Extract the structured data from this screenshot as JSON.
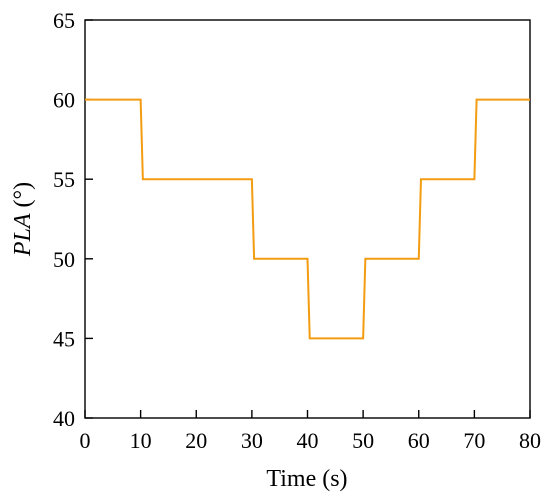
{
  "chart_data": {
    "type": "line",
    "title": "",
    "xlabel": "Time (s)",
    "ylabel_italic": "PLA",
    "ylabel_unit": " (°)",
    "xlim": [
      0,
      80
    ],
    "ylim": [
      40,
      65
    ],
    "xticks": [
      0,
      10,
      20,
      30,
      40,
      50,
      60,
      70,
      80
    ],
    "yticks": [
      40,
      45,
      50,
      55,
      60,
      65
    ],
    "grid": false,
    "legend": "none",
    "color": "#F39C12",
    "series": [
      {
        "x": [
          0,
          10,
          10.4,
          30,
          30.4,
          40,
          40.4,
          50,
          50.4,
          60,
          60.4,
          70,
          70.4,
          80
        ],
        "y": [
          60,
          60,
          55,
          55,
          50,
          50,
          45,
          45,
          50,
          50,
          55,
          55,
          60,
          60
        ]
      }
    ]
  }
}
